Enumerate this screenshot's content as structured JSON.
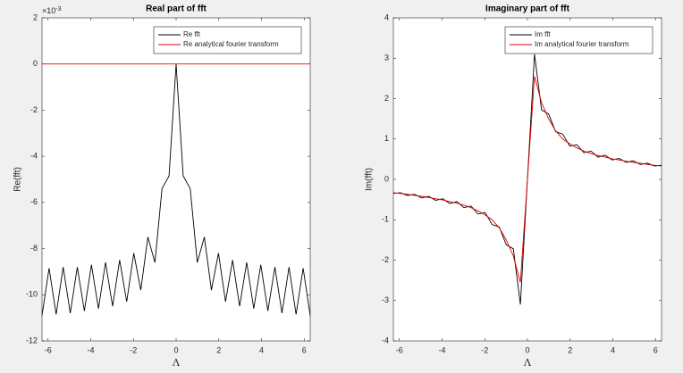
{
  "chart_data": [
    {
      "type": "line",
      "title": "Real part of fft",
      "x_label": "Λ",
      "y_label": "Re(fft)",
      "y_multiplier": {
        "base": "×10",
        "exponent": "-3"
      },
      "x": [
        -6.283,
        -5.952,
        -5.621,
        -5.291,
        -4.96,
        -4.629,
        -4.299,
        -3.968,
        -3.638,
        -3.307,
        -2.976,
        -2.646,
        -2.315,
        -1.984,
        -1.654,
        -1.323,
        -0.992,
        -0.661,
        -0.331,
        0,
        0.331,
        0.661,
        0.992,
        1.323,
        1.654,
        1.984,
        2.315,
        2.646,
        2.976,
        3.307,
        3.638,
        3.968,
        4.299,
        4.629,
        4.96,
        5.291,
        5.621,
        5.952,
        6.283
      ],
      "series": [
        {
          "name": "Re fft",
          "color": "#000000",
          "values": [
            -10.9,
            -8.85,
            -10.85,
            -8.8,
            -10.8,
            -8.8,
            -10.7,
            -8.7,
            -10.6,
            -8.6,
            -10.5,
            -8.5,
            -10.3,
            -8.2,
            -9.8,
            -7.5,
            -8.6,
            -5.4,
            -4.85,
            0,
            -4.85,
            -5.4,
            -8.6,
            -7.5,
            -9.8,
            -8.2,
            -10.3,
            -8.5,
            -10.5,
            -8.6,
            -10.6,
            -8.7,
            -10.7,
            -8.8,
            -10.8,
            -8.8,
            -10.85,
            -8.85,
            -10.9
          ]
        },
        {
          "name": "Re analytical fourier transform",
          "color": "#e00000",
          "values": [
            0,
            0,
            0,
            0,
            0,
            0,
            0,
            0,
            0,
            0,
            0,
            0,
            0,
            0,
            0,
            0,
            0,
            0,
            0,
            0,
            0,
            0,
            0,
            0,
            0,
            0,
            0,
            0,
            0,
            0,
            0,
            0,
            0,
            0,
            0,
            0,
            0,
            0,
            0
          ]
        }
      ],
      "xlim": [
        -6.283,
        6.283
      ],
      "ylim": [
        -12,
        2
      ],
      "xticks": [
        -6,
        -4,
        -2,
        0,
        2,
        4,
        6
      ],
      "yticks": [
        -12,
        -10,
        -8,
        -6,
        -4,
        -2,
        0,
        2
      ],
      "legend": "northeast"
    },
    {
      "type": "line",
      "title": "Imaginary part of fft",
      "x_label": "Λ",
      "y_label": "Im(fft)",
      "x": [
        -6.283,
        -5.952,
        -5.621,
        -5.291,
        -4.96,
        -4.629,
        -4.299,
        -3.968,
        -3.638,
        -3.307,
        -2.976,
        -2.646,
        -2.315,
        -1.984,
        -1.654,
        -1.323,
        -0.992,
        -0.661,
        -0.331,
        0,
        0.331,
        0.661,
        0.992,
        1.323,
        1.654,
        1.984,
        2.315,
        2.646,
        2.976,
        3.307,
        3.638,
        3.968,
        4.299,
        4.629,
        4.96,
        5.291,
        5.621,
        5.952,
        6.283
      ],
      "series": [
        {
          "name": "Im fft",
          "color": "#000000",
          "values": [
            -0.35,
            -0.33,
            -0.4,
            -0.37,
            -0.46,
            -0.42,
            -0.52,
            -0.48,
            -0.6,
            -0.55,
            -0.7,
            -0.66,
            -0.86,
            -0.82,
            -1.12,
            -1.18,
            -1.62,
            -1.72,
            -3.1,
            0,
            3.1,
            1.72,
            1.62,
            1.18,
            1.12,
            0.82,
            0.86,
            0.66,
            0.7,
            0.55,
            0.6,
            0.48,
            0.52,
            0.42,
            0.46,
            0.37,
            0.4,
            0.33,
            0.35
          ]
        },
        {
          "name": "Im analytical fourier transform",
          "color": "#e00000",
          "values": [
            -0.33,
            -0.35,
            -0.37,
            -0.4,
            -0.42,
            -0.45,
            -0.48,
            -0.51,
            -0.55,
            -0.59,
            -0.64,
            -0.7,
            -0.78,
            -0.88,
            -1.0,
            -1.2,
            -1.5,
            -1.9,
            -2.55,
            0,
            2.55,
            1.9,
            1.5,
            1.2,
            1.0,
            0.88,
            0.78,
            0.7,
            0.64,
            0.59,
            0.55,
            0.51,
            0.48,
            0.45,
            0.42,
            0.4,
            0.37,
            0.35,
            0.33
          ]
        }
      ],
      "xlim": [
        -6.283,
        6.283
      ],
      "ylim": [
        -4,
        4
      ],
      "xticks": [
        -6,
        -4,
        -2,
        0,
        2,
        4,
        6
      ],
      "yticks": [
        -4,
        -3,
        -2,
        -1,
        0,
        1,
        2,
        3,
        4
      ],
      "legend": "northeast"
    }
  ]
}
